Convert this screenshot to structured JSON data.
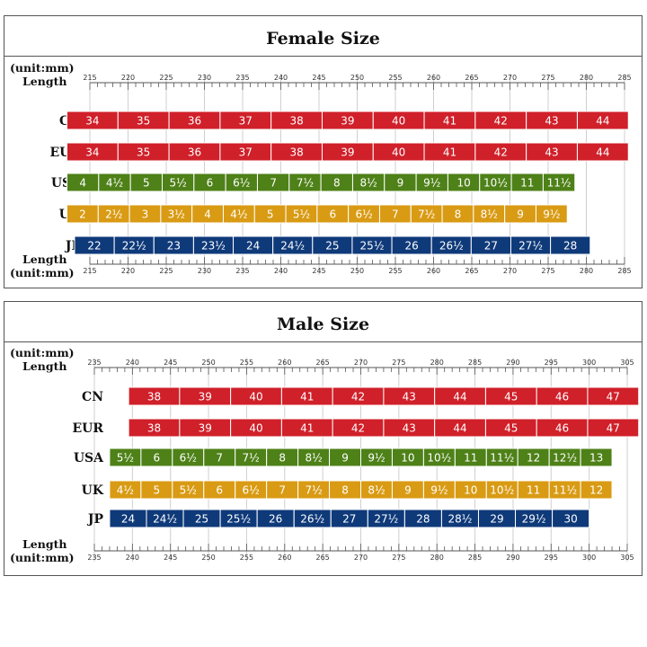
{
  "colors": {
    "CN": "#d0202a",
    "EUR": "#d0202a",
    "USA": "#4e8118",
    "UK": "#d99b14",
    "JP": "#0f3a7a",
    "grid": "#cfcfcf",
    "axis": "#555555"
  },
  "chart_data": [
    {
      "type": "table",
      "title": "Female Size",
      "axis_top": {
        "label_unit": "(unit:mm)",
        "label_length": "Length"
      },
      "axis_bottom": {
        "label_length": "Length",
        "label_unit": "(unit:mm)"
      },
      "xlim": [
        215,
        285
      ],
      "ticks": [
        215,
        220,
        225,
        230,
        235,
        240,
        245,
        250,
        255,
        260,
        265,
        270,
        275,
        280,
        285
      ],
      "rows": [
        {
          "name": "CN",
          "color_key": "CN",
          "start": 212,
          "end": 285.5,
          "sizes": [
            "34",
            "35",
            "36",
            "37",
            "38",
            "39",
            "40",
            "41",
            "42",
            "43",
            "44"
          ]
        },
        {
          "name": "EUR",
          "color_key": "EUR",
          "start": 212,
          "end": 285.5,
          "sizes": [
            "34",
            "35",
            "36",
            "37",
            "38",
            "39",
            "40",
            "41",
            "42",
            "43",
            "44"
          ]
        },
        {
          "name": "USA",
          "color_key": "USA",
          "start": 212,
          "end": 278.5,
          "sizes": [
            "4",
            "4½",
            "5",
            "5½",
            "6",
            "6½",
            "7",
            "7½",
            "8",
            "8½",
            "9",
            "9½",
            "10",
            "10½",
            "11",
            "11½"
          ]
        },
        {
          "name": "UK",
          "color_key": "UK",
          "start": 212,
          "end": 277.5,
          "sizes": [
            "2",
            "2½",
            "3",
            "3½",
            "4",
            "4½",
            "5",
            "5½",
            "6",
            "6½",
            "7",
            "7½",
            "8",
            "8½",
            "9",
            "9½"
          ]
        },
        {
          "name": "JP",
          "color_key": "JP",
          "start": 213,
          "end": 280.5,
          "sizes": [
            "22",
            "22½",
            "23",
            "23½",
            "24",
            "24½",
            "25",
            "25½",
            "26",
            "26½",
            "27",
            "27½",
            "28"
          ]
        }
      ]
    },
    {
      "type": "table",
      "title": "Male Size",
      "axis_top": {
        "label_unit": "(unit:mm)",
        "label_length": "Length"
      },
      "axis_bottom": {
        "label_length": "Length",
        "label_unit": "(unit:mm)"
      },
      "xlim": [
        235,
        305
      ],
      "ticks": [
        235,
        240,
        245,
        250,
        255,
        260,
        265,
        270,
        275,
        280,
        285,
        290,
        295,
        300,
        305
      ],
      "rows": [
        {
          "name": "CN",
          "color_key": "CN",
          "start": 239.5,
          "end": 306.5,
          "sizes": [
            "38",
            "39",
            "40",
            "41",
            "42",
            "43",
            "44",
            "45",
            "46",
            "47"
          ]
        },
        {
          "name": "EUR",
          "color_key": "EUR",
          "start": 239.5,
          "end": 306.5,
          "sizes": [
            "38",
            "39",
            "40",
            "41",
            "42",
            "43",
            "44",
            "45",
            "46",
            "47"
          ]
        },
        {
          "name": "USA",
          "color_key": "USA",
          "start": 237,
          "end": 303,
          "sizes": [
            "5½",
            "6",
            "6½",
            "7",
            "7½",
            "8",
            "8½",
            "9",
            "9½",
            "10",
            "10½",
            "11",
            "11½",
            "12",
            "12½",
            "13"
          ]
        },
        {
          "name": "UK",
          "color_key": "UK",
          "start": 237,
          "end": 303,
          "sizes": [
            "4½",
            "5",
            "5½",
            "6",
            "6½",
            "7",
            "7½",
            "8",
            "8½",
            "9",
            "9½",
            "10",
            "10½",
            "11",
            "11½",
            "12"
          ]
        },
        {
          "name": "JP",
          "color_key": "JP",
          "start": 237,
          "end": 300,
          "sizes": [
            "24",
            "24½",
            "25",
            "25½",
            "26",
            "26½",
            "27",
            "27½",
            "28",
            "28½",
            "29",
            "29½",
            "30"
          ]
        }
      ]
    }
  ]
}
